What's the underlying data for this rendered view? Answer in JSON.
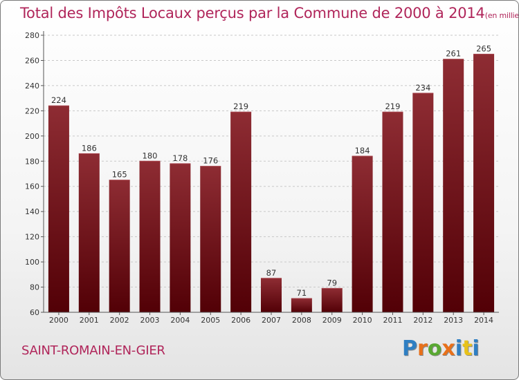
{
  "title": {
    "main": "Total des Impôts Locaux perçus par la Commune de 2000 à 2014",
    "unit": "(en milliers d'€)"
  },
  "commune": "SAINT-ROMAIN-EN-GIER",
  "logo": {
    "letters": [
      "P",
      "r",
      "o",
      "x",
      "i",
      "t",
      "i"
    ],
    "colors": [
      "#2f7fc3",
      "#e8701a",
      "#59a832",
      "#e8701a",
      "#2f7fc3",
      "#e8c21a",
      "#2f7fc3"
    ]
  },
  "chart_data": {
    "type": "bar",
    "title": "Total des Impôts Locaux perçus par la Commune de 2000 à 2014",
    "xlabel": "",
    "ylabel": "",
    "categories": [
      "2000",
      "2001",
      "2002",
      "2003",
      "2004",
      "2005",
      "2006",
      "2007",
      "2008",
      "2009",
      "2010",
      "2011",
      "2012",
      "2013",
      "2014"
    ],
    "values": [
      224,
      186,
      165,
      180,
      178,
      176,
      219,
      87,
      71,
      79,
      184,
      219,
      234,
      261,
      265
    ],
    "ylim": [
      60,
      280
    ],
    "yticks": [
      60,
      80,
      100,
      120,
      140,
      160,
      180,
      200,
      220,
      240,
      260,
      280
    ],
    "grid": "horizontal dashed",
    "bar_color": "#7a1a22"
  }
}
